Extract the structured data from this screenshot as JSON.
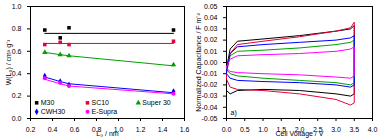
{
  "chart_data": [
    {
      "type": "scatter",
      "x_label": "L₀ / nm",
      "y_label": "W(L₀) / cm³ g⁻¹",
      "x": [
        0.33,
        0.47,
        0.55,
        1.5
      ],
      "xlim": [
        0.2,
        1.6
      ],
      "xticks": [
        0.2,
        0.4,
        0.6,
        0.8,
        {
          "value": 1,
          "label": "1.0"
        },
        1.2,
        1.4,
        1.6
      ],
      "ylim": [
        0,
        1
      ],
      "yticks": [
        {
          "value": 0,
          "label": "0.0"
        },
        0.2,
        0.4,
        0.6,
        0.8,
        {
          "value": 1,
          "label": "1.0"
        }
      ],
      "legend": "bottom",
      "series": [
        {
          "name": "M30",
          "color": "#000000",
          "marker": "square",
          "values": [
            0.79,
            0.72,
            0.81,
            0.79
          ],
          "fit": [
            0.76,
            0.76,
            0.76,
            0.76
          ]
        },
        {
          "name": "SC10",
          "color": "#e8003a",
          "marker": "square",
          "values": [
            0.66,
            0.68,
            0.66,
            0.69
          ],
          "fit": [
            0.67,
            0.67,
            0.67,
            0.67
          ]
        },
        {
          "name": "Super 30",
          "color": "#00a000",
          "marker": "triangle",
          "values": [
            0.59,
            0.57,
            0.56,
            0.48
          ],
          "fit": [
            0.59,
            0.57,
            0.56,
            0.47
          ]
        },
        {
          "name": "CWH30",
          "color": "#0000ff",
          "marker": "diamond",
          "values": [
            0.38,
            0.33,
            0.3,
            0.24
          ],
          "fit": [
            0.37,
            0.33,
            0.31,
            0.23
          ]
        },
        {
          "name": "E-Supra",
          "color": "#ff00ff",
          "marker": "circle",
          "values": [
            0.36,
            0.32,
            0.29,
            0.22
          ],
          "fit": [
            0.35,
            0.31,
            0.29,
            0.22
          ]
        }
      ]
    },
    {
      "type": "line",
      "x_label": "Cell Voltage / V",
      "y_label": "Normalized Capacitance / F m⁻²",
      "annotation": "a)",
      "x": [
        0,
        0.1,
        0.3,
        1.0,
        2.0,
        3.0,
        3.4,
        3.5,
        3.5,
        3.4,
        3.0,
        2.0,
        1.0,
        0.3,
        0.1,
        0,
        0
      ],
      "xlim": [
        0,
        4
      ],
      "xticks": [
        {
          "value": 0,
          "label": "0.0"
        },
        0.5,
        {
          "value": 1,
          "label": "1.0"
        },
        1.5,
        {
          "value": 2,
          "label": "2.0"
        },
        2.5,
        {
          "value": 3,
          "label": "3.0"
        },
        3.5,
        {
          "value": 4,
          "label": "4.0"
        }
      ],
      "ylim": [
        -0.05,
        0.05
      ],
      "yticks": [
        -0.05,
        -0.04,
        -0.03,
        -0.02,
        -0.01,
        {
          "value": 0,
          "label": "0.00"
        },
        0.01,
        0.02,
        0.03,
        0.04,
        0.05
      ],
      "series": [
        {
          "color": "#000000",
          "values": [
            -0.005,
            0.012,
            0.019,
            0.021,
            0.024,
            0.028,
            0.03,
            0.033,
            -0.028,
            -0.03,
            -0.028,
            -0.025,
            -0.024,
            -0.025,
            -0.028,
            -0.025,
            -0.005
          ]
        },
        {
          "color": "#e8003a",
          "values": [
            -0.01,
            0.008,
            0.016,
            0.019,
            0.023,
            0.028,
            0.031,
            0.036,
            -0.036,
            -0.038,
            -0.033,
            -0.028,
            -0.025,
            -0.024,
            -0.022,
            -0.015,
            -0.01
          ]
        },
        {
          "color": "#00a000",
          "values": [
            -0.005,
            0.006,
            0.01,
            0.011,
            0.013,
            0.016,
            0.018,
            0.02,
            -0.018,
            -0.02,
            -0.018,
            -0.016,
            -0.014,
            -0.012,
            -0.01,
            -0.006,
            -0.005
          ]
        },
        {
          "color": "#0000ff",
          "values": [
            -0.008,
            0.008,
            0.014,
            0.016,
            0.018,
            0.02,
            0.022,
            0.024,
            -0.02,
            -0.022,
            -0.02,
            -0.018,
            -0.017,
            -0.016,
            -0.014,
            -0.01,
            -0.008
          ]
        },
        {
          "color": "#ff00ff",
          "values": [
            -0.004,
            0.003,
            0.006,
            0.007,
            0.008,
            0.01,
            0.012,
            0.014,
            -0.012,
            -0.014,
            -0.013,
            -0.011,
            -0.01,
            -0.009,
            -0.008,
            -0.005,
            -0.004
          ]
        }
      ]
    }
  ]
}
